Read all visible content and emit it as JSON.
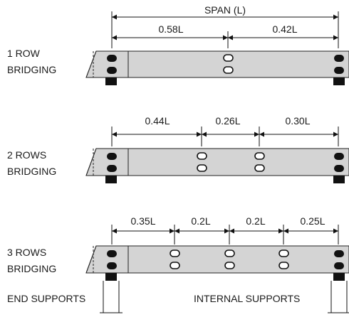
{
  "diagram": {
    "span_label": "SPAN (L)",
    "rows": [
      {
        "label_lines": [
          "1 ROW",
          "BRIDGING"
        ],
        "dimensions": [
          "0.58L",
          "0.42L"
        ]
      },
      {
        "label_lines": [
          "2 ROWS",
          "BRIDGING"
        ],
        "dimensions": [
          "0.44L",
          "0.26L",
          "0.30L"
        ]
      },
      {
        "label_lines": [
          "3 ROWS",
          "BRIDGING"
        ],
        "dimensions": [
          "0.35L",
          "0.2L",
          "0.2L",
          "0.25L"
        ]
      }
    ],
    "footer": {
      "end_supports": "END SUPPORTS",
      "internal_supports": "INTERNAL SUPPORTS"
    }
  }
}
